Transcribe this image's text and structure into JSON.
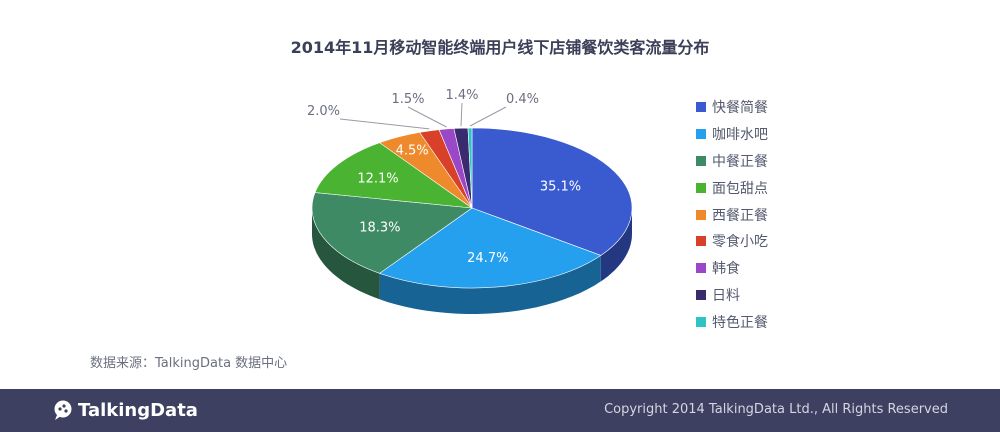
{
  "chart_data": {
    "type": "pie",
    "title": "2014年11月移动智能终端用户线下店铺餐饮类客流量分布",
    "style": "3d",
    "legend_position": "right",
    "slices": [
      {
        "name": "快餐简餐",
        "value": 35.1,
        "label": "35.1%",
        "color": "#3a5ad0"
      },
      {
        "name": "咖啡水吧",
        "value": 24.7,
        "label": "24.7%",
        "color": "#24a0ef"
      },
      {
        "name": "中餐正餐",
        "value": 18.3,
        "label": "18.3%",
        "color": "#3d8a64"
      },
      {
        "name": "面包甜点",
        "value": 12.1,
        "label": "12.1%",
        "color": "#4ab432"
      },
      {
        "name": "西餐正餐",
        "value": 4.5,
        "label": "4.5%",
        "color": "#ee8a2c"
      },
      {
        "name": "零食小吃",
        "value": 2.0,
        "label": "2.0%",
        "color": "#d8402a"
      },
      {
        "name": "韩食",
        "value": 1.5,
        "label": "1.5%",
        "color": "#9a48c8"
      },
      {
        "name": "日料",
        "value": 1.4,
        "label": "1.4%",
        "color": "#3a2a6e"
      },
      {
        "name": "特色正餐",
        "value": 0.4,
        "label": "0.4%",
        "color": "#2ec4c4"
      }
    ]
  },
  "source": "数据来源：TalkingData 数据中心",
  "footer": {
    "brand": "TalkingData",
    "copyright": "Copyright 2014 TalkingData Ltd., All Rights Reserved",
    "background": "#3d4060"
  }
}
